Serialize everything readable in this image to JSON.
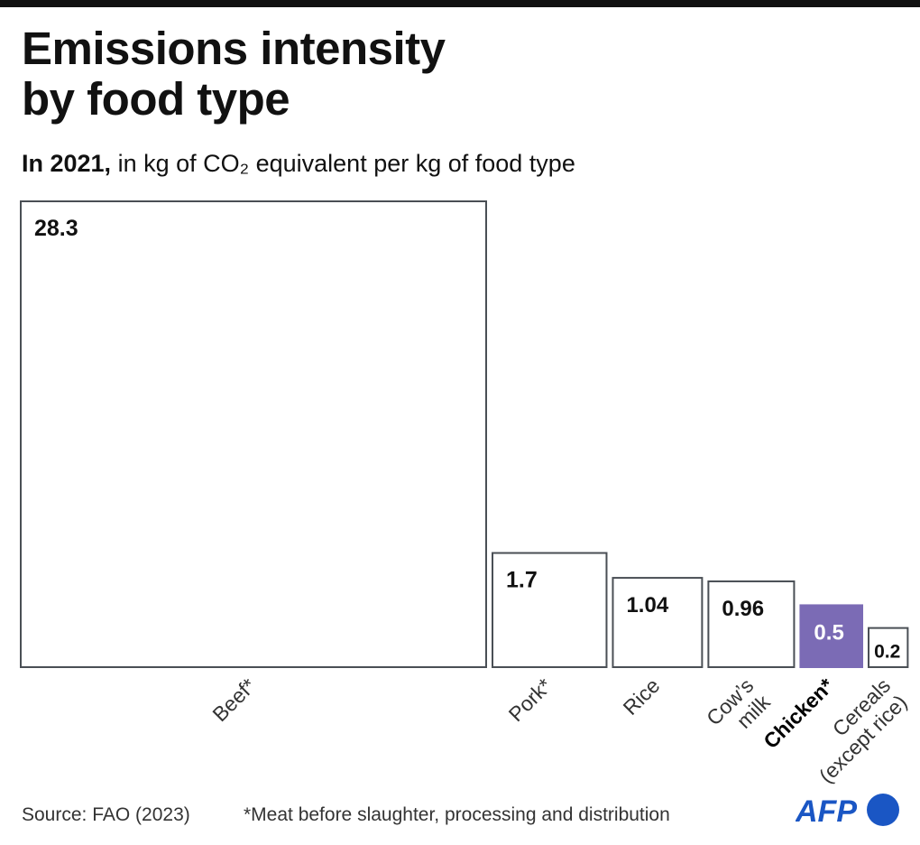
{
  "title": "Emissions intensity by food type",
  "title_lines": [
    "Emissions intensity",
    "by food type"
  ],
  "subtitle": {
    "bold": "In 2021,",
    "rest": " in kg of CO₂ equivalent per kg of food type"
  },
  "chart_data": {
    "type": "bar",
    "encoding": "square area proportional to value",
    "categories": [
      "Beef*",
      "Pork*",
      "Rice",
      "Cow’s milk",
      "Chicken*",
      "Cereals (except rice)"
    ],
    "category_lines": [
      [
        "Beef*"
      ],
      [
        "Pork*"
      ],
      [
        "Rice"
      ],
      [
        "Cow’s",
        "milk"
      ],
      [
        "Chicken*"
      ],
      [
        "Cereals",
        "(except rice)"
      ]
    ],
    "values": [
      28.3,
      1.7,
      1.04,
      0.96,
      0.5,
      0.2
    ],
    "value_labels": [
      "28.3",
      "1.7",
      "1.04",
      "0.96",
      "0.5",
      "0.2"
    ],
    "highlight": "Chicken*",
    "title": "Emissions intensity by food type",
    "ylabel": "kg of CO₂ equivalent per kg of food type",
    "colors": {
      "outline": "#4a4f55",
      "highlight": "#7b6bb5",
      "highlight_text": "#ffffff",
      "text": "#111111"
    }
  },
  "footer": {
    "source": "Source: FAO (2023)",
    "note": "*Meat before slaughter,  processing and distribution"
  },
  "logo": {
    "text": "AFP",
    "color": "#1a56c4"
  }
}
